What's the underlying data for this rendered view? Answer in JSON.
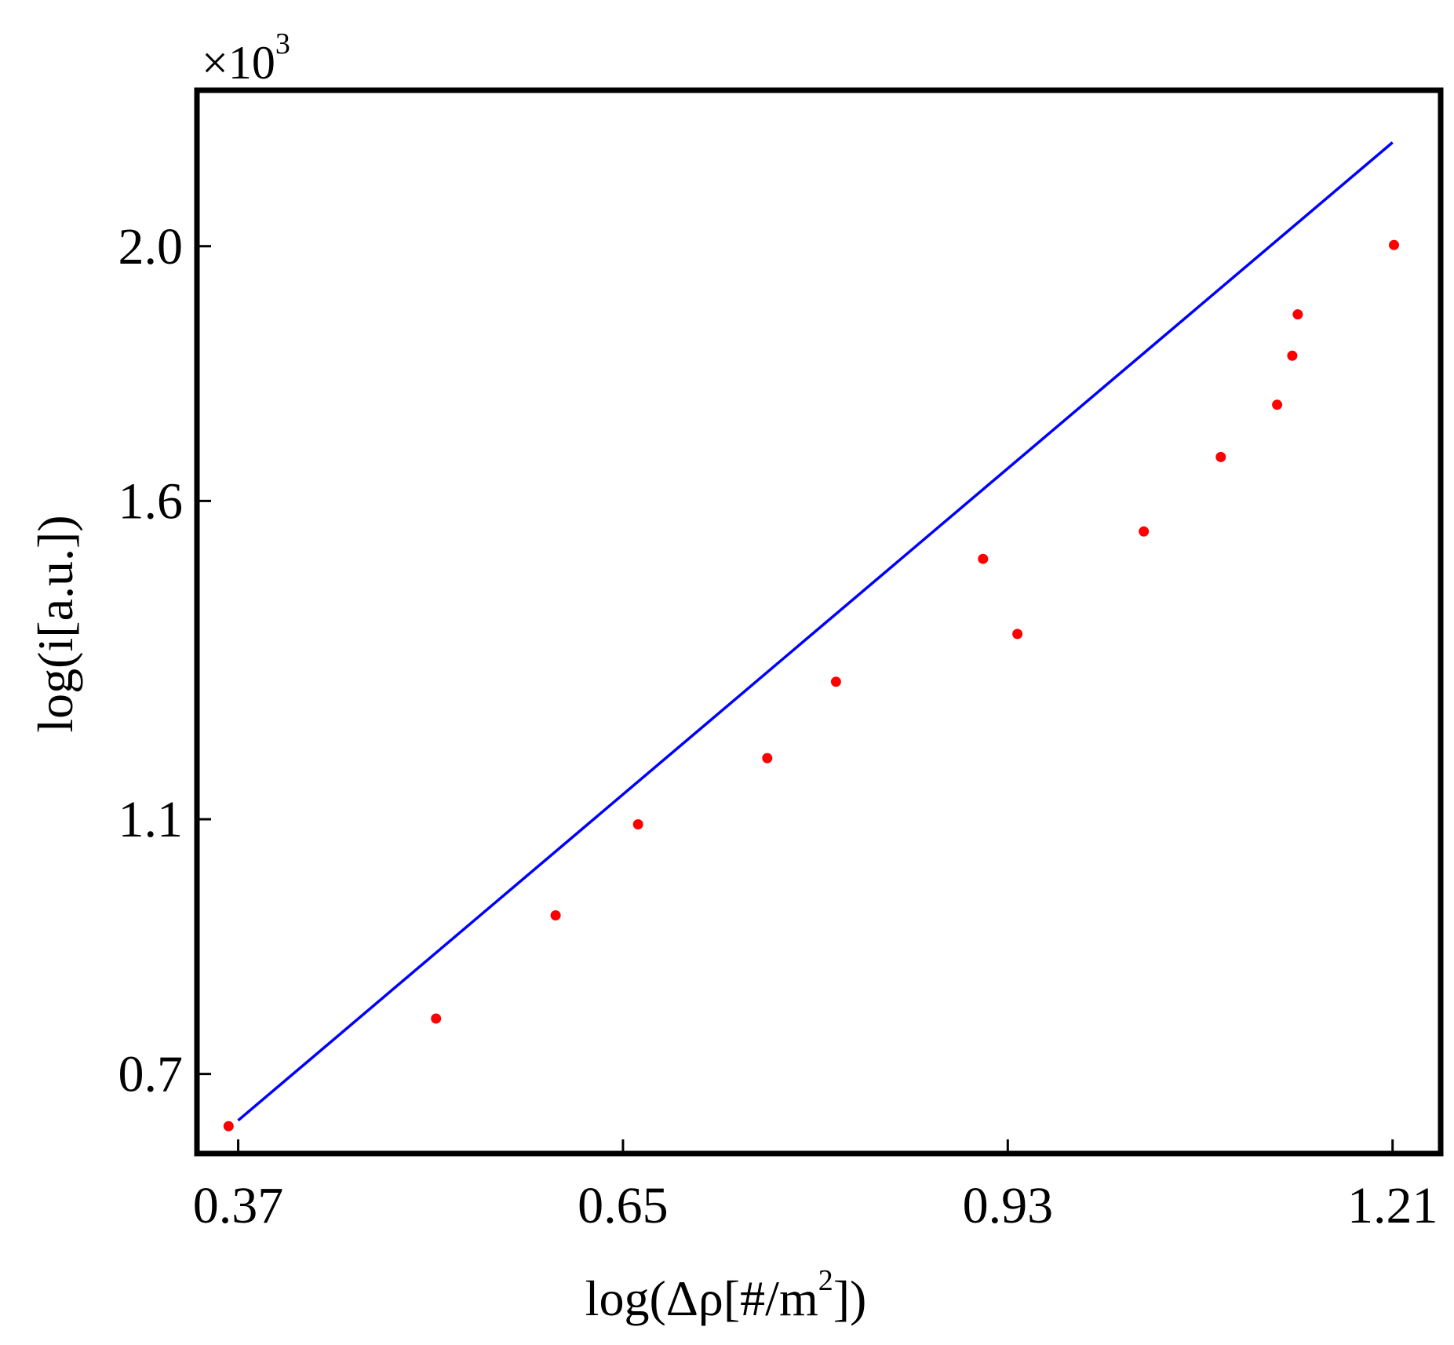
{
  "chart_data": {
    "type": "scatter",
    "title": "",
    "xlabel": "log(Δρ[#/m",
    "xlabel_sup": "2",
    "xlabel_tail": "])",
    "ylabel": "log(i[a.u.])",
    "y_multiplier": "×10",
    "y_multiplier_exp": "3",
    "xlim": [
      0.34,
      1.245
    ],
    "ylim": [
      0.575,
      2.245
    ],
    "x_ticks": [
      0.37,
      0.65,
      0.93,
      1.21
    ],
    "x_tick_labels": [
      "0.37",
      "0.65",
      "0.93",
      "1.21"
    ],
    "y_ticks": [
      0.7,
      1.1,
      1.6,
      2.0
    ],
    "y_tick_labels": [
      "0.7",
      "1.1",
      "1.6",
      "2.0"
    ],
    "grid": false,
    "series": [
      {
        "kind": "scatter",
        "color": "#ff0000",
        "x": [
          0.363,
          0.514,
          0.601,
          0.661,
          0.755,
          0.805,
          0.912,
          0.937,
          1.029,
          1.085,
          1.126,
          1.137,
          1.141,
          1.211
        ],
        "y": [
          0.618,
          0.787,
          0.949,
          1.092,
          1.196,
          1.316,
          1.509,
          1.391,
          1.552,
          1.669,
          1.751,
          1.828,
          1.893,
          2.002
        ]
      },
      {
        "kind": "line",
        "color": "#0000ff",
        "x": [
          0.37,
          1.21
        ],
        "y": [
          0.627,
          2.163
        ]
      }
    ]
  }
}
